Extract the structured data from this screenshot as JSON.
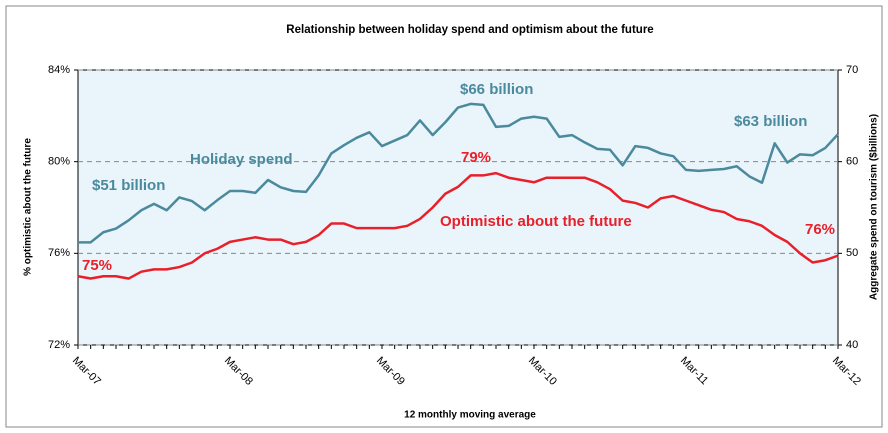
{
  "chart_data": {
    "type": "line",
    "title": "Relationship between holiday spend and optimism about the future",
    "x_label": "12 monthly moving average",
    "y_label": "% optimistic about the future",
    "y2_label": "Aggregate spend on tourism ($billions)",
    "categories": [
      "Mar-07",
      null,
      null,
      null,
      null,
      null,
      null,
      null,
      null,
      null,
      null,
      null,
      "Mar-08",
      null,
      null,
      null,
      null,
      null,
      null,
      null,
      null,
      null,
      null,
      null,
      "Mar-09",
      null,
      null,
      null,
      null,
      null,
      null,
      null,
      null,
      null,
      null,
      null,
      "Mar-10",
      null,
      null,
      null,
      null,
      null,
      null,
      null,
      null,
      null,
      null,
      null,
      "Mar-11",
      null,
      null,
      null,
      null,
      null,
      null,
      null,
      null,
      null,
      null,
      null,
      "Mar-12"
    ],
    "ylim": [
      72,
      84
    ],
    "yticks": [
      {
        "value": 72,
        "label": "72%"
      },
      {
        "value": 76,
        "label": "76%"
      },
      {
        "value": 80,
        "label": "80%"
      },
      {
        "value": 84,
        "label": "84%"
      }
    ],
    "y2lim": [
      40,
      70
    ],
    "y2ticks": [
      40,
      50,
      60,
      70
    ],
    "grid": true,
    "background": "#eaf4fb",
    "series": [
      {
        "name": "Holiday spend",
        "color": "#4a8a9c",
        "axis": "y2",
        "values": [
          51.2,
          51.2,
          52.3,
          52.7,
          53.6,
          54.7,
          55.4,
          54.7,
          56.1,
          55.7,
          54.7,
          55.8,
          56.8,
          56.8,
          56.6,
          58.0,
          57.2,
          56.8,
          56.7,
          58.5,
          60.9,
          61.8,
          62.6,
          63.2,
          61.7,
          62.3,
          62.9,
          64.5,
          62.9,
          64.3,
          65.9,
          66.3,
          66.2,
          63.8,
          63.9,
          64.7,
          64.9,
          64.7,
          62.7,
          62.9,
          62.1,
          61.4,
          61.3,
          59.6,
          61.7,
          61.5,
          60.9,
          60.6,
          59.1,
          59.0,
          59.1,
          59.2,
          59.5,
          58.4,
          57.7,
          62.0,
          59.9,
          60.8,
          60.7,
          61.5,
          63.0
        ]
      },
      {
        "name": "Optimistic about the future",
        "color": "#e8202a",
        "values": [
          75.0,
          74.9,
          75.0,
          75.0,
          74.9,
          75.2,
          75.3,
          75.3,
          75.4,
          75.6,
          76.0,
          76.2,
          76.5,
          76.6,
          76.7,
          76.6,
          76.6,
          76.4,
          76.5,
          76.8,
          77.3,
          77.3,
          77.1,
          77.1,
          77.1,
          77.1,
          77.2,
          77.5,
          78.0,
          78.6,
          78.9,
          79.4,
          79.4,
          79.5,
          79.3,
          79.2,
          79.1,
          79.3,
          79.3,
          79.3,
          79.3,
          79.1,
          78.8,
          78.3,
          78.2,
          78.0,
          78.4,
          78.5,
          78.3,
          78.1,
          77.9,
          77.8,
          77.5,
          77.4,
          77.2,
          76.8,
          76.5,
          76.0,
          75.6,
          75.7,
          75.9
        ]
      }
    ],
    "annotations": [
      "$51 billion",
      "$66 billion",
      "$63 billion",
      "79%",
      "75%",
      "76%"
    ]
  }
}
